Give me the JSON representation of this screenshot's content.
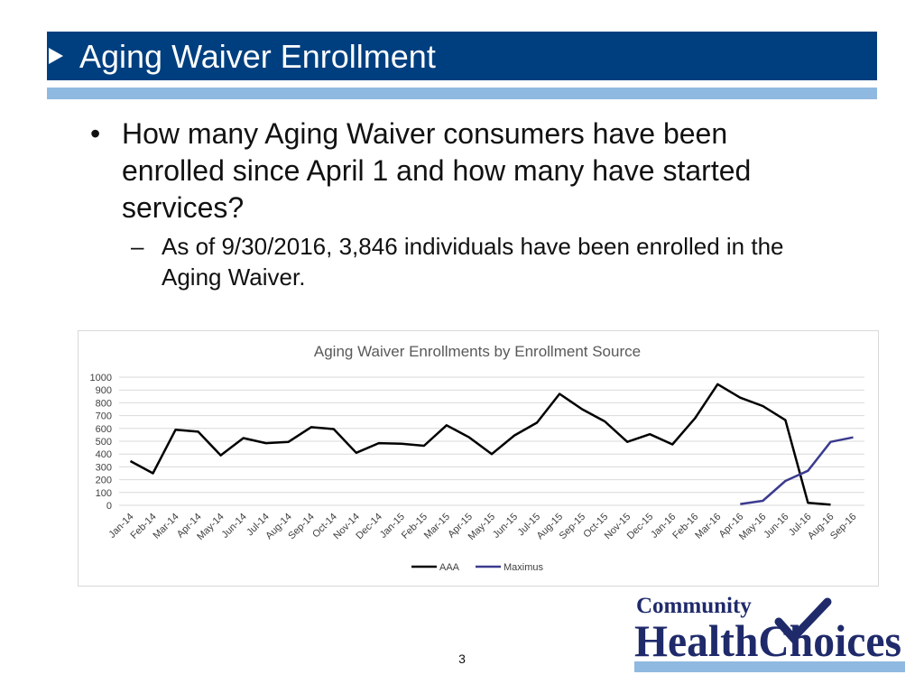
{
  "slide": {
    "title": "Aging Waiver Enrollment",
    "bullet_mark": "•",
    "question": "How many Aging Waiver consumers have been enrolled since April 1 and how many have started services?",
    "dash_mark": "–",
    "answer": "As of 9/30/2016, 3,846 individuals have been enrolled in the Aging Waiver.",
    "page_number": "3"
  },
  "logo": {
    "line1": "Community",
    "line2a": "Health",
    "line2b": "Choices"
  },
  "colors": {
    "title_bar": "#003f7f",
    "title_rule": "#8fb9e0",
    "aaa": "#000000",
    "maximus": "#3b3b8f",
    "logo_navy": "#1f2a6b"
  },
  "chart_data": {
    "type": "line",
    "title": "Aging Waiver Enrollments by Enrollment Source",
    "xlabel": "",
    "ylabel": "",
    "ylim": [
      0,
      1000
    ],
    "yticks": [
      0,
      100,
      200,
      300,
      400,
      500,
      600,
      700,
      800,
      900,
      1000
    ],
    "grid": true,
    "legend_position": "bottom-center",
    "categories": [
      "Jan-14",
      "Feb-14",
      "Mar-14",
      "Apr-14",
      "May-14",
      "Jun-14",
      "Jul-14",
      "Aug-14",
      "Sep-14",
      "Oct-14",
      "Nov-14",
      "Dec-14",
      "Jan-15",
      "Feb-15",
      "Mar-15",
      "Apr-15",
      "May-15",
      "Jun-15",
      "Jul-15",
      "Aug-15",
      "Sep-15",
      "Oct-15",
      "Nov-15",
      "Dec-15",
      "Jan-16",
      "Feb-16",
      "Mar-16",
      "Apr-16",
      "May-16",
      "Jun-16",
      "Jul-16",
      "Aug-16",
      "Sep-16"
    ],
    "series": [
      {
        "name": "AAA",
        "values": [
          345,
          250,
          590,
          575,
          390,
          525,
          485,
          495,
          610,
          595,
          410,
          485,
          480,
          465,
          625,
          530,
          400,
          545,
          645,
          870,
          750,
          655,
          495,
          555,
          475,
          680,
          945,
          840,
          775,
          665,
          20,
          5,
          null
        ]
      },
      {
        "name": "Maximus",
        "values": [
          null,
          null,
          null,
          null,
          null,
          null,
          null,
          null,
          null,
          null,
          null,
          null,
          null,
          null,
          null,
          null,
          null,
          null,
          null,
          null,
          null,
          null,
          null,
          null,
          null,
          null,
          null,
          10,
          35,
          190,
          270,
          495,
          530
        ]
      }
    ]
  }
}
